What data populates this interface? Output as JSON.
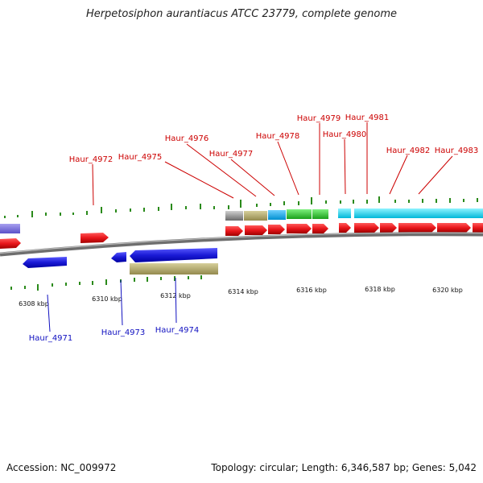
{
  "title": "Herpetosiphon aurantiacus ATCC 23779, complete genome",
  "footer": {
    "accession": "Accession: NC_009972",
    "summary": "Topology: circular; Length: 6,346,587 bp; Genes: 5,042"
  },
  "axis": {
    "ticks": [
      {
        "label": "6308 kbp",
        "kbp": 6308
      },
      {
        "label": "6310 kbp",
        "kbp": 6310
      },
      {
        "label": "6312 kbp",
        "kbp": 6312
      },
      {
        "label": "6314 kbp",
        "kbp": 6314
      },
      {
        "label": "6316 kbp",
        "kbp": 6316
      },
      {
        "label": "6318 kbp",
        "kbp": 6318
      },
      {
        "label": "6320 kbp",
        "kbp": 6320
      }
    ]
  },
  "gene_labels": [
    {
      "name": "Haur_4971",
      "strand": "reverse",
      "color": "#1010c0"
    },
    {
      "name": "Haur_4972",
      "strand": "forward",
      "color": "#cc0000"
    },
    {
      "name": "Haur_4973",
      "strand": "reverse",
      "color": "#1010c0"
    },
    {
      "name": "Haur_4974",
      "strand": "reverse",
      "color": "#1010c0"
    },
    {
      "name": "Haur_4975",
      "strand": "forward",
      "color": "#cc0000"
    },
    {
      "name": "Haur_4976",
      "strand": "forward",
      "color": "#cc0000"
    },
    {
      "name": "Haur_4977",
      "strand": "forward",
      "color": "#cc0000"
    },
    {
      "name": "Haur_4978",
      "strand": "forward",
      "color": "#cc0000"
    },
    {
      "name": "Haur_4979",
      "strand": "forward",
      "color": "#cc0000"
    },
    {
      "name": "Haur_4980",
      "strand": "forward",
      "color": "#cc0000"
    },
    {
      "name": "Haur_4981",
      "strand": "forward",
      "color": "#cc0000"
    },
    {
      "name": "Haur_4982",
      "strand": "forward",
      "color": "#cc0000"
    },
    {
      "name": "Haur_4983",
      "strand": "forward",
      "color": "#cc0000"
    }
  ],
  "colors": {
    "forward_gene": "#e8161b",
    "reverse_gene": "#1a1ad6",
    "backbone": "#8c8c8c",
    "gc_skew": "#2a8a1a"
  }
}
